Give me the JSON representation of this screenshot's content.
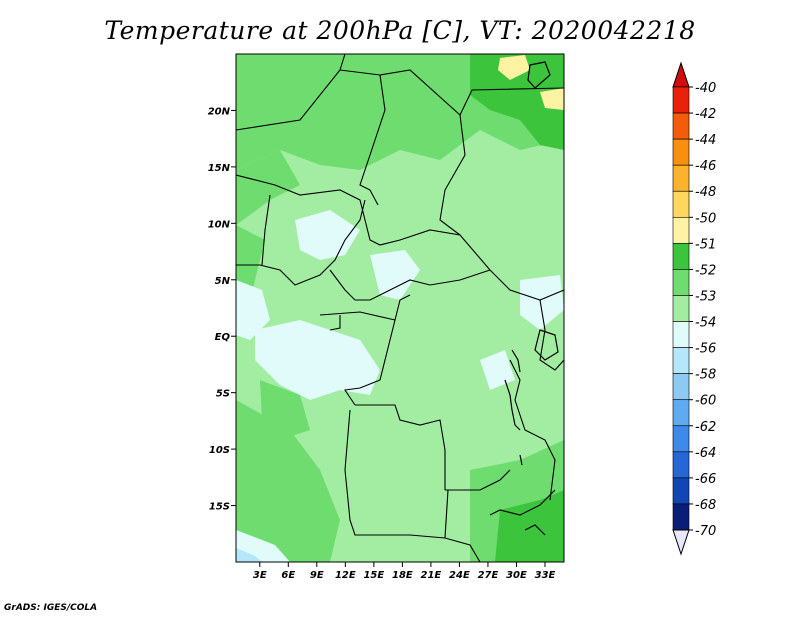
{
  "title": "Temperature at 200hPa [C], VT: 2020042218",
  "credit": "GrADS: IGES/COLA",
  "map": {
    "lat_ticks": [
      {
        "label": "20N",
        "value": 20
      },
      {
        "label": "15N",
        "value": 15
      },
      {
        "label": "10N",
        "value": 10
      },
      {
        "label": "5N",
        "value": 5
      },
      {
        "label": "EQ",
        "value": 0
      },
      {
        "label": "5S",
        "value": -5
      },
      {
        "label": "10S",
        "value": -10
      },
      {
        "label": "15S",
        "value": -15
      }
    ],
    "lon_ticks": [
      {
        "label": "3E",
        "value": 3
      },
      {
        "label": "6E",
        "value": 6
      },
      {
        "label": "9E",
        "value": 9
      },
      {
        "label": "12E",
        "value": 12
      },
      {
        "label": "15E",
        "value": 15
      },
      {
        "label": "18E",
        "value": 18
      },
      {
        "label": "21E",
        "value": 21
      },
      {
        "label": "24E",
        "value": 24
      },
      {
        "label": "27E",
        "value": 27
      },
      {
        "label": "30E",
        "value": 30
      },
      {
        "label": "33E",
        "value": 33
      }
    ],
    "lon_range": [
      0.5,
      35
    ],
    "lat_range": [
      -20,
      25
    ]
  },
  "colorbar": {
    "labels": [
      "-40",
      "-42",
      "-44",
      "-46",
      "-48",
      "-50",
      "-51",
      "-52",
      "-53",
      "-54",
      "-56",
      "-58",
      "-60",
      "-62",
      "-64",
      "-66",
      "-68",
      "-70"
    ],
    "colors": [
      "#e8200c",
      "#f25c0a",
      "#f98f10",
      "#fbb32d",
      "#fdd75e",
      "#fef3a2",
      "#3cc43c",
      "#6fdc6f",
      "#a3eda3",
      "#e1fbfb",
      "#b5e6fa",
      "#8ccaf4",
      "#5faaf0",
      "#3d8ae8",
      "#2667d6",
      "#1246b4",
      "#0a1e78"
    ],
    "top_arrow_color": "#d00c0c",
    "bottom_arrow_color": "#e8e8fa"
  }
}
